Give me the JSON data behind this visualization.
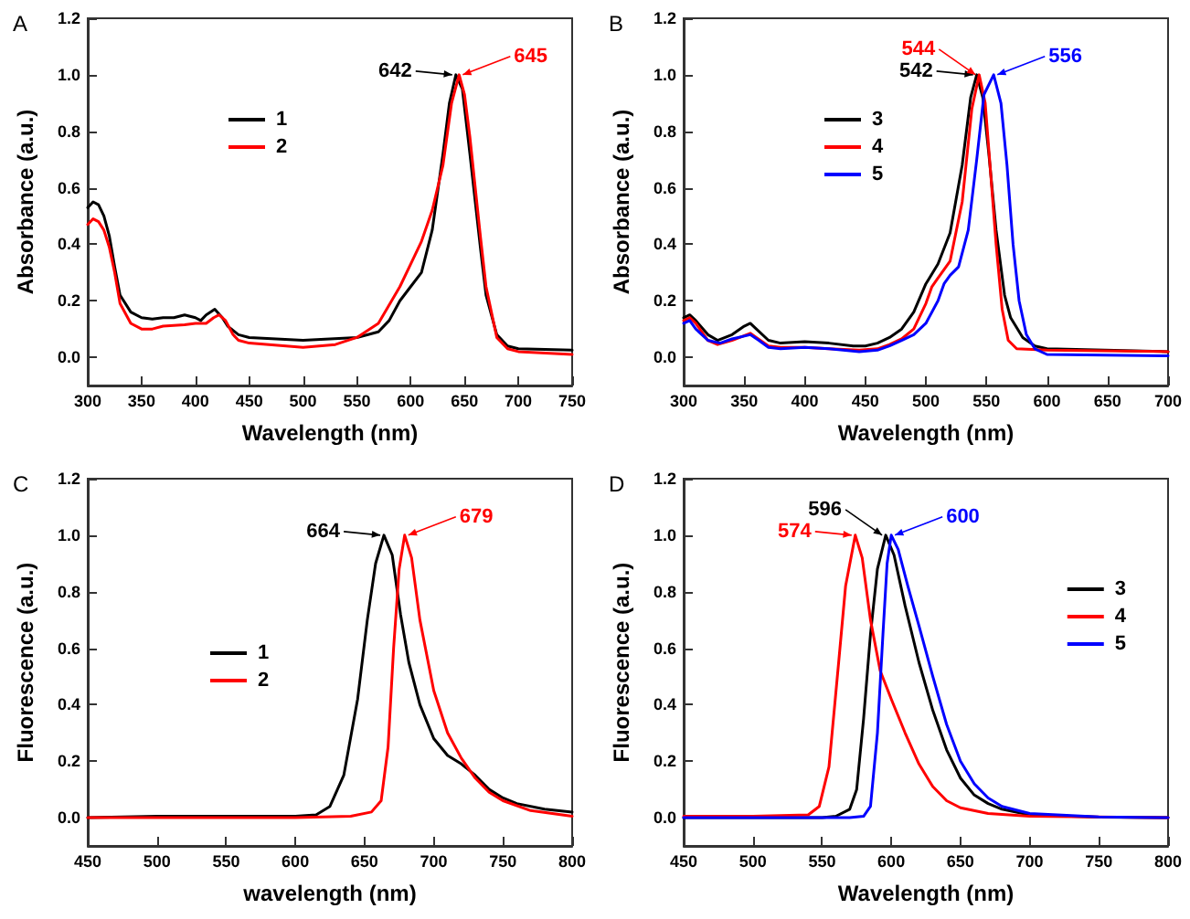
{
  "chart_data": [
    {
      "type": "line",
      "title": "A",
      "xlabel": "Wavelength (nm)",
      "ylabel": "Absorbance (a.u.)",
      "xlim": [
        300,
        750
      ],
      "xticks": [
        300,
        350,
        400,
        450,
        500,
        550,
        600,
        650,
        700,
        750
      ],
      "ylim": [
        -0.1,
        1.2
      ],
      "yticks": [
        {
          "value": 0,
          "label": "0.0"
        },
        {
          "value": 0.2,
          "label": "0.2"
        },
        {
          "value": 0.4,
          "label": "0.4"
        },
        {
          "value": 0.6,
          "label": "0.6"
        },
        {
          "value": 0.8,
          "label": "0.8"
        },
        {
          "value": 1,
          "label": "1.0"
        },
        {
          "value": 1.2,
          "label": "1.2"
        }
      ],
      "grid": false,
      "legend": "top left",
      "marker": "none",
      "line_style": "solid",
      "series": [
        {
          "name": "1",
          "color": "#000000",
          "x": [
            300,
            305,
            310,
            315,
            320,
            325,
            330,
            340,
            350,
            360,
            370,
            380,
            390,
            400,
            405,
            410,
            418,
            425,
            430,
            440,
            450,
            500,
            550,
            570,
            580,
            590,
            600,
            610,
            620,
            630,
            636,
            642,
            648,
            655,
            660,
            665,
            670,
            680,
            690,
            700,
            750
          ],
          "values": [
            0.53,
            0.55,
            0.54,
            0.5,
            0.43,
            0.32,
            0.22,
            0.16,
            0.14,
            0.135,
            0.14,
            0.14,
            0.15,
            0.14,
            0.13,
            0.15,
            0.17,
            0.14,
            0.11,
            0.08,
            0.07,
            0.06,
            0.07,
            0.09,
            0.13,
            0.2,
            0.25,
            0.3,
            0.45,
            0.72,
            0.9,
            1.0,
            0.95,
            0.72,
            0.55,
            0.38,
            0.22,
            0.08,
            0.04,
            0.03,
            0.025
          ]
        },
        {
          "name": "2",
          "color": "#ff0000",
          "x": [
            300,
            305,
            310,
            315,
            320,
            325,
            330,
            340,
            350,
            360,
            370,
            390,
            400,
            410,
            417,
            422,
            428,
            435,
            440,
            450,
            500,
            530,
            550,
            570,
            590,
            600,
            610,
            620,
            630,
            638,
            645,
            650,
            655,
            660,
            665,
            670,
            680,
            690,
            700,
            750
          ],
          "values": [
            0.47,
            0.49,
            0.48,
            0.45,
            0.39,
            0.3,
            0.19,
            0.12,
            0.1,
            0.1,
            0.11,
            0.115,
            0.12,
            0.12,
            0.14,
            0.15,
            0.13,
            0.08,
            0.06,
            0.05,
            0.035,
            0.045,
            0.07,
            0.12,
            0.25,
            0.33,
            0.41,
            0.52,
            0.68,
            0.9,
            1.0,
            0.93,
            0.78,
            0.6,
            0.42,
            0.25,
            0.07,
            0.03,
            0.02,
            0.01
          ]
        }
      ],
      "annotations": [
        {
          "text": "642",
          "x": 642,
          "y": 1.0
        },
        {
          "text": "645",
          "x": 645,
          "y": 1.0
        }
      ]
    },
    {
      "type": "line",
      "title": "B",
      "xlabel": "Wavelength (nm)",
      "ylabel": "Absorbance (a.u.)",
      "xlim": [
        300,
        700
      ],
      "xticks": [
        300,
        350,
        400,
        450,
        500,
        550,
        600,
        650,
        700
      ],
      "ylim": [
        -0.1,
        1.2
      ],
      "yticks": [
        {
          "value": 0,
          "label": "0.0"
        },
        {
          "value": 0.2,
          "label": "0.2"
        },
        {
          "value": 0.4,
          "label": "0.4"
        },
        {
          "value": 0.6,
          "label": "0.6"
        },
        {
          "value": 0.8,
          "label": "0.8"
        },
        {
          "value": 1,
          "label": "1.0"
        },
        {
          "value": 1.2,
          "label": "1.2"
        }
      ],
      "grid": false,
      "legend": "top left",
      "marker": "none",
      "line_style": "solid",
      "series": [
        {
          "name": "3",
          "color": "#000000",
          "x": [
            300,
            305,
            310,
            320,
            328,
            340,
            350,
            355,
            360,
            370,
            380,
            400,
            420,
            440,
            450,
            460,
            470,
            480,
            490,
            500,
            510,
            520,
            530,
            537,
            542,
            547,
            552,
            558,
            565,
            570,
            580,
            590,
            600,
            700
          ],
          "values": [
            0.14,
            0.15,
            0.13,
            0.08,
            0.06,
            0.08,
            0.11,
            0.12,
            0.1,
            0.06,
            0.05,
            0.055,
            0.05,
            0.04,
            0.04,
            0.05,
            0.07,
            0.1,
            0.16,
            0.26,
            0.33,
            0.44,
            0.68,
            0.92,
            1.0,
            0.92,
            0.72,
            0.45,
            0.22,
            0.14,
            0.07,
            0.04,
            0.03,
            0.02
          ]
        },
        {
          "name": "4",
          "color": "#ff0000",
          "x": [
            300,
            305,
            310,
            320,
            328,
            340,
            355,
            360,
            370,
            380,
            400,
            420,
            445,
            460,
            470,
            480,
            490,
            500,
            505,
            510,
            520,
            530,
            538,
            544,
            549,
            553,
            558,
            563,
            568,
            575,
            600,
            700
          ],
          "values": [
            0.13,
            0.14,
            0.12,
            0.06,
            0.045,
            0.06,
            0.085,
            0.07,
            0.04,
            0.035,
            0.035,
            0.03,
            0.025,
            0.03,
            0.045,
            0.065,
            0.1,
            0.19,
            0.25,
            0.28,
            0.34,
            0.55,
            0.88,
            1.0,
            0.9,
            0.68,
            0.4,
            0.17,
            0.06,
            0.03,
            0.025,
            0.02
          ]
        },
        {
          "name": "5",
          "color": "#0000ff",
          "x": [
            300,
            305,
            310,
            320,
            330,
            340,
            355,
            362,
            370,
            380,
            400,
            420,
            445,
            460,
            470,
            480,
            490,
            500,
            510,
            515,
            520,
            527,
            535,
            542,
            548,
            556,
            562,
            567,
            572,
            577,
            583,
            590,
            600,
            700
          ],
          "values": [
            0.12,
            0.13,
            0.1,
            0.06,
            0.05,
            0.065,
            0.08,
            0.06,
            0.035,
            0.03,
            0.035,
            0.03,
            0.02,
            0.025,
            0.04,
            0.06,
            0.08,
            0.12,
            0.2,
            0.26,
            0.29,
            0.32,
            0.45,
            0.7,
            0.93,
            1.0,
            0.9,
            0.68,
            0.4,
            0.2,
            0.08,
            0.03,
            0.01,
            0.005
          ]
        }
      ],
      "annotations": [
        {
          "text": "542",
          "x": 542,
          "y": 1.0
        },
        {
          "text": "544",
          "x": 544,
          "y": 1.0
        },
        {
          "text": "556",
          "x": 556,
          "y": 1.0
        }
      ]
    },
    {
      "type": "line",
      "title": "C",
      "xlabel": "wavelength (nm)",
      "ylabel": "Fluorescence (a.u.)",
      "xlim": [
        450,
        800
      ],
      "xticks": [
        450,
        500,
        550,
        600,
        650,
        700,
        750,
        800
      ],
      "ylim": [
        -0.1,
        1.2
      ],
      "yticks": [
        {
          "value": 0,
          "label": "0.0"
        },
        {
          "value": 0.2,
          "label": "0.2"
        },
        {
          "value": 0.4,
          "label": "0.4"
        },
        {
          "value": 0.6,
          "label": "0.6"
        },
        {
          "value": 0.8,
          "label": "0.8"
        },
        {
          "value": 1,
          "label": "1.0"
        },
        {
          "value": 1.2,
          "label": "1.2"
        }
      ],
      "grid": false,
      "legend": "left",
      "marker": "none",
      "line_style": "solid",
      "series": [
        {
          "name": "1",
          "color": "#000000",
          "x": [
            450,
            500,
            550,
            600,
            615,
            625,
            635,
            645,
            652,
            658,
            664,
            670,
            676,
            682,
            690,
            700,
            710,
            720,
            730,
            740,
            750,
            760,
            780,
            800
          ],
          "values": [
            0.0,
            0.005,
            0.005,
            0.005,
            0.01,
            0.04,
            0.15,
            0.42,
            0.7,
            0.9,
            1.0,
            0.93,
            0.72,
            0.55,
            0.4,
            0.28,
            0.22,
            0.19,
            0.15,
            0.1,
            0.07,
            0.05,
            0.03,
            0.02
          ]
        },
        {
          "name": "2",
          "color": "#ff0000",
          "x": [
            450,
            600,
            640,
            655,
            662,
            667,
            671,
            675,
            679,
            684,
            690,
            700,
            710,
            720,
            730,
            740,
            750,
            770,
            800
          ],
          "values": [
            0,
            0,
            0.005,
            0.02,
            0.06,
            0.25,
            0.6,
            0.88,
            1.0,
            0.92,
            0.7,
            0.45,
            0.3,
            0.21,
            0.14,
            0.09,
            0.06,
            0.025,
            0.005
          ]
        }
      ],
      "annotations": [
        {
          "text": "664",
          "x": 664,
          "y": 1.0
        },
        {
          "text": "679",
          "x": 679,
          "y": 1.0
        }
      ]
    },
    {
      "type": "line",
      "title": "D",
      "xlabel": "Wavelength (nm)",
      "ylabel": "Fluorescence (a.u.)",
      "xlim": [
        450,
        800
      ],
      "xticks": [
        450,
        500,
        550,
        600,
        650,
        700,
        750,
        800
      ],
      "ylim": [
        -0.1,
        1.2
      ],
      "yticks": [
        {
          "value": 0,
          "label": "0.0"
        },
        {
          "value": 0.2,
          "label": "0.2"
        },
        {
          "value": 0.4,
          "label": "0.4"
        },
        {
          "value": 0.6,
          "label": "0.6"
        },
        {
          "value": 0.8,
          "label": "0.8"
        },
        {
          "value": 1,
          "label": "1.0"
        },
        {
          "value": 1.2,
          "label": "1.2"
        }
      ],
      "grid": false,
      "legend": "right",
      "marker": "none",
      "line_style": "solid",
      "series": [
        {
          "name": "3",
          "color": "#000000",
          "x": [
            450,
            550,
            560,
            570,
            575,
            580,
            585,
            590,
            596,
            602,
            610,
            620,
            630,
            640,
            650,
            660,
            670,
            680,
            700,
            750,
            800
          ],
          "values": [
            0,
            0,
            0.005,
            0.03,
            0.1,
            0.35,
            0.65,
            0.88,
            1.0,
            0.93,
            0.75,
            0.55,
            0.38,
            0.24,
            0.14,
            0.08,
            0.05,
            0.03,
            0.01,
            0.002,
            0
          ]
        },
        {
          "name": "4",
          "color": "#ff0000",
          "x": [
            450,
            500,
            540,
            548,
            555,
            562,
            567,
            574,
            579,
            585,
            592,
            600,
            610,
            620,
            630,
            640,
            650,
            670,
            700,
            800
          ],
          "values": [
            0.005,
            0.005,
            0.01,
            0.04,
            0.18,
            0.55,
            0.82,
            1.0,
            0.92,
            0.7,
            0.52,
            0.42,
            0.3,
            0.19,
            0.11,
            0.06,
            0.035,
            0.015,
            0.005,
            0
          ]
        },
        {
          "name": "5",
          "color": "#0000ff",
          "x": [
            450,
            570,
            580,
            585,
            590,
            594,
            597,
            600,
            605,
            612,
            620,
            630,
            640,
            650,
            660,
            670,
            680,
            700,
            750,
            800
          ],
          "values": [
            0,
            0,
            0.005,
            0.04,
            0.3,
            0.65,
            0.9,
            1.0,
            0.95,
            0.82,
            0.68,
            0.5,
            0.33,
            0.2,
            0.12,
            0.07,
            0.04,
            0.015,
            0.003,
            0
          ]
        }
      ],
      "annotations": [
        {
          "text": "596",
          "x": 596,
          "y": 1.0
        },
        {
          "text": "574",
          "x": 574,
          "y": 1.0
        },
        {
          "text": "600",
          "x": 600,
          "y": 1.0
        }
      ]
    }
  ]
}
